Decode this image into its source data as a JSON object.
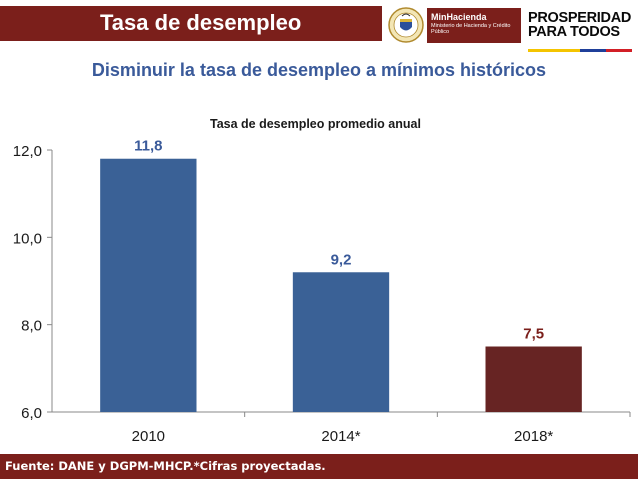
{
  "header": {
    "title": "Tasa de desempleo",
    "minhacienda_title": "MinHacienda",
    "minhacienda_sub": "Ministerio de Hacienda y Crédito Público",
    "prosperidad_line1": "PROSPERIDAD",
    "prosperidad_line2": "PARA TODOS"
  },
  "colors": {
    "brand_red": "#7b1f1b",
    "bar_blue": "#3a6196",
    "bar_red": "#672423",
    "label_blue": "#3a5a9a",
    "label_red": "#7b1f1b"
  },
  "subtitle": "Disminuir la tasa de desempleo a mínimos históricos",
  "chart_data": {
    "type": "bar",
    "title": "Tasa de desempleo promedio anual",
    "categories": [
      "2010",
      "2014*",
      "2018*"
    ],
    "values": [
      11.8,
      9.2,
      7.5
    ],
    "value_labels": [
      "11,8",
      "9,2",
      "7,5"
    ],
    "bar_colors": [
      "#3a6196",
      "#3a6196",
      "#672423"
    ],
    "label_colors": [
      "#3a5a9a",
      "#3a5a9a",
      "#7b1f1b"
    ],
    "xlabel": "",
    "ylabel": "",
    "ylim": [
      6,
      12
    ],
    "yticks": [
      6,
      8,
      10,
      12
    ],
    "ytick_labels": [
      "6,0",
      "8,0",
      "10,0",
      "12,0"
    ],
    "grid": false,
    "legend": "none"
  },
  "footer": {
    "source": "Fuente:  DANE y DGPM-MHCP.*Cifras proyectadas."
  }
}
